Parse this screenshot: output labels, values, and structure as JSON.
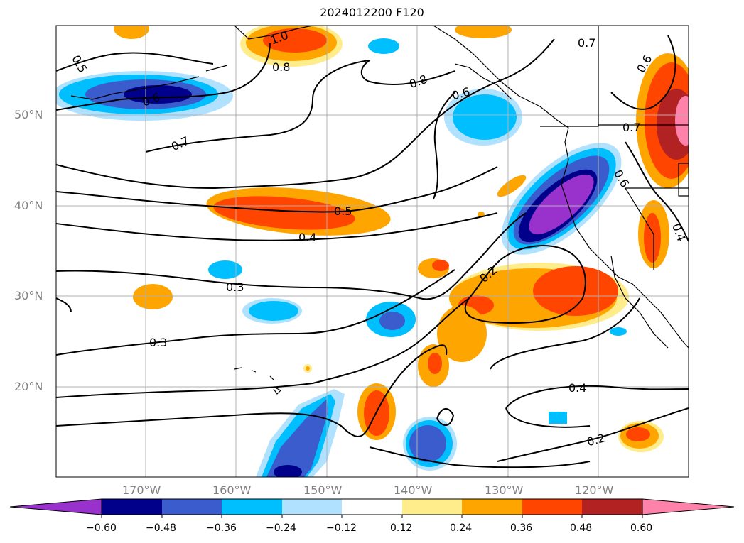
{
  "title": "2024012200 F120",
  "lat_labels": [
    "50°N",
    "40°N",
    "30°N",
    "20°N"
  ],
  "lon_labels": [
    "170°W",
    "160°W",
    "150°W",
    "140°W",
    "130°W",
    "120°W"
  ],
  "contour_labels": [
    "0.5",
    "0.6",
    "0.7",
    "1.0",
    "0.8",
    "0.8",
    "0.6",
    "0.7",
    "0.6",
    "0.7",
    "0.6",
    "0.5",
    "0.4",
    "0.3",
    "0.3",
    "0.2",
    "0.4",
    "0.2",
    "0.4"
  ],
  "colorbar": {
    "ticks": [
      "−0.60",
      "−0.48",
      "−0.36",
      "−0.24",
      "−0.12",
      "0.12",
      "0.24",
      "0.36",
      "0.48",
      "0.60"
    ],
    "colors": [
      "#9932cc",
      "#00008b",
      "#3a5ccc",
      "#00bfff",
      "#b0e2ff",
      "#ffffff",
      "#ffec8b",
      "#ffa500",
      "#ff4500",
      "#b22222",
      "#ff82ab"
    ]
  }
}
